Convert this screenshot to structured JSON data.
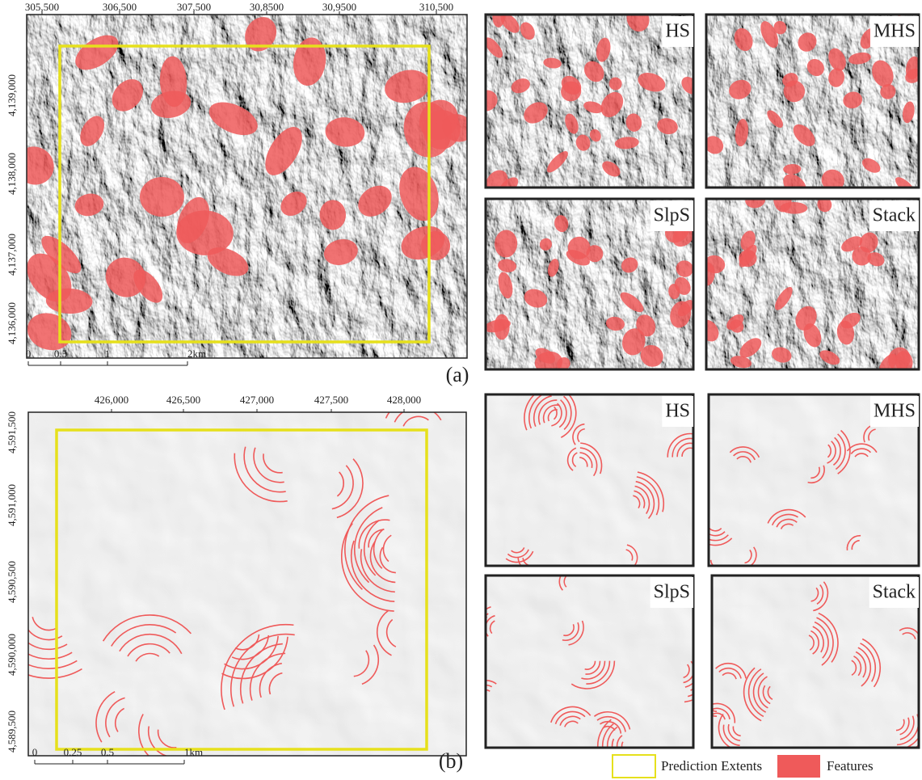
{
  "panels": [
    {
      "label": "(a)",
      "x_labels": [
        "305,500",
        "306,500",
        "307,500",
        "30,8500",
        "30,9500",
        "310,500"
      ],
      "y_labels": [
        "4,139,000",
        "4,138,000",
        "4,137,000",
        "4,136,000"
      ],
      "scale_labels": [
        "0",
        "0.5",
        "1",
        "2km"
      ],
      "insets": [
        {
          "label": "HS",
          "color": "#4fb39a"
        },
        {
          "label": "MHS",
          "color": "#4a7bc0"
        },
        {
          "label": "SlpS",
          "color": "#9a57c8"
        },
        {
          "label": "Stack",
          "color": "#e04848"
        }
      ]
    },
    {
      "label": "(b)",
      "x_labels": [
        "426,000",
        "426,500",
        "427,000",
        "427,500",
        "428,000"
      ],
      "y_labels": [
        "4,591,500",
        "4,591,000",
        "4,590,500",
        "4,590,000",
        "4,589,500"
      ],
      "scale_labels": [
        "0",
        "0.25",
        "0.5",
        "1km"
      ],
      "insets": [
        {
          "label": "HS",
          "color": "#4fb39a"
        },
        {
          "label": "MHS",
          "color": "#4a7bc0"
        },
        {
          "label": "SlpS",
          "color": "#9a57c8"
        },
        {
          "label": "Stack",
          "color": "#e04848"
        }
      ]
    }
  ],
  "legend": {
    "extent": "Prediction Extents",
    "features": "Features",
    "extent_color": "#e6e01c",
    "feature_color": "#ef5a5a"
  }
}
